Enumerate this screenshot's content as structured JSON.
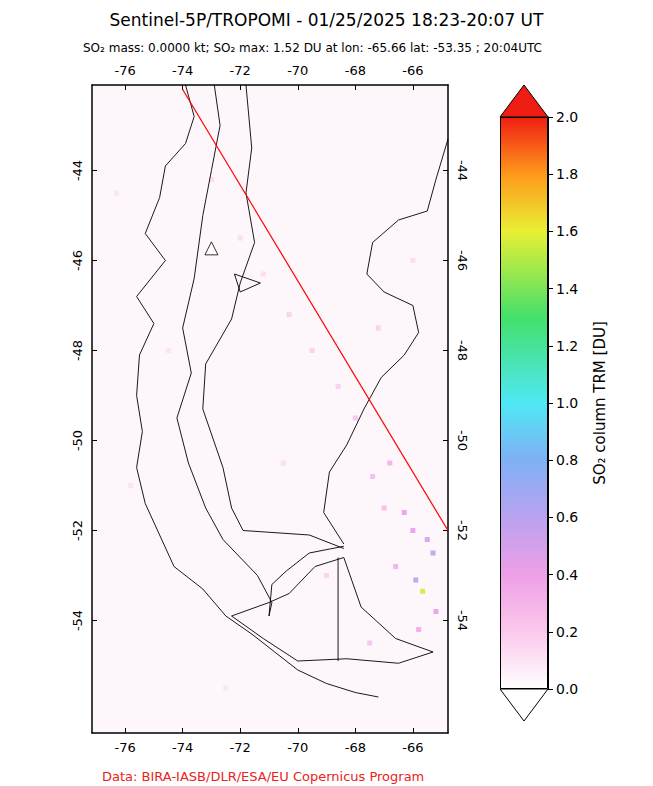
{
  "chart_data": {
    "type": "map",
    "title": "Sentinel-5P/TROPOMI - 01/25/2025 18:23-20:07 UT",
    "subtitle": "SO₂ mass: 0.0000 kt; SO₂ max: 1.52 DU at lon: -65.66 lat: -53.35 ; 20:04UTC",
    "credit": "Data: BIRA-IASB/DLR/ESA/EU Copernicus Program",
    "xlim": [
      -77.15,
      -64.78
    ],
    "ylim": [
      -56.5,
      -42.1
    ],
    "xticks": [
      -76,
      -74,
      -72,
      -70,
      -68,
      -66
    ],
    "yticks": [
      -44,
      -46,
      -48,
      -50,
      -52,
      -54
    ],
    "grid": false,
    "colorbar": {
      "label": "SO₂ column TRM [DU]",
      "range": [
        0,
        2
      ],
      "ticks": [
        {
          "value": 0,
          "label": "0.0"
        },
        {
          "value": 0.2,
          "label": "0.2"
        },
        {
          "value": 0.4,
          "label": "0.4"
        },
        {
          "value": 0.6,
          "label": "0.6"
        },
        {
          "value": 0.8,
          "label": "0.8"
        },
        {
          "value": 1,
          "label": "1.0"
        },
        {
          "value": 1.2,
          "label": "1.2"
        },
        {
          "value": 1.4,
          "label": "1.4"
        },
        {
          "value": 1.6,
          "label": "1.6"
        },
        {
          "value": 1.8,
          "label": "1.8"
        },
        {
          "value": 2,
          "label": "2.0"
        }
      ]
    },
    "pixels": [
      [
        -65.66,
        -53.35,
        1.52
      ],
      [
        -65.9,
        -53.1,
        0.7
      ],
      [
        -65.3,
        -52.5,
        0.65
      ],
      [
        -65.5,
        -52.2,
        0.55
      ],
      [
        -66.0,
        -52.0,
        0.5
      ],
      [
        -66.3,
        -51.6,
        0.45
      ],
      [
        -65.2,
        -53.8,
        0.5
      ],
      [
        -65.8,
        -54.2,
        0.4
      ],
      [
        -66.6,
        -52.8,
        0.35
      ],
      [
        -67.0,
        -51.5,
        0.3
      ],
      [
        -67.4,
        -50.8,
        0.3
      ],
      [
        -66.8,
        -50.5,
        0.35
      ],
      [
        -68.0,
        -49.5,
        0.25
      ],
      [
        -68.6,
        -48.8,
        0.2
      ],
      [
        -69.5,
        -48.0,
        0.2
      ],
      [
        -70.3,
        -47.2,
        0.2
      ],
      [
        -71.2,
        -46.3,
        0.15
      ],
      [
        -72.0,
        -45.5,
        0.15
      ],
      [
        -73.0,
        -44.2,
        0.15
      ],
      [
        -70.5,
        -50.5,
        0.15
      ],
      [
        -69.0,
        -53.0,
        0.2
      ],
      [
        -67.5,
        -54.5,
        0.25
      ],
      [
        -74.5,
        -48.0,
        0.12
      ],
      [
        -75.8,
        -51.0,
        0.12
      ],
      [
        -72.5,
        -55.5,
        0.12
      ],
      [
        -76.3,
        -44.5,
        0.12
      ],
      [
        -66.0,
        -46.0,
        0.15
      ],
      [
        -67.2,
        -47.5,
        0.2
      ]
    ],
    "orbit_edge": [
      [
        -74.0,
        -42.2
      ],
      [
        -64.78,
        -52.0
      ]
    ],
    "volcano": [
      -73.0,
      -45.73
    ],
    "coastlines": [
      [
        [
          -73.9,
          -42.1
        ],
        [
          -73.6,
          -42.8
        ],
        [
          -73.9,
          -43.4
        ],
        [
          -74.6,
          -43.9
        ],
        [
          -74.8,
          -44.6
        ],
        [
          -75.3,
          -45.4
        ],
        [
          -74.6,
          -46.0
        ],
        [
          -75.6,
          -46.8
        ],
        [
          -75.0,
          -47.4
        ],
        [
          -75.5,
          -48.1
        ],
        [
          -75.6,
          -49.0
        ],
        [
          -75.4,
          -49.8
        ],
        [
          -75.6,
          -50.6
        ],
        [
          -75.3,
          -51.4
        ],
        [
          -74.8,
          -52.1
        ],
        [
          -74.3,
          -52.8
        ],
        [
          -73.3,
          -53.3
        ],
        [
          -72.5,
          -53.9
        ],
        [
          -71.6,
          -54.3
        ],
        [
          -70.8,
          -54.7
        ],
        [
          -70.0,
          -55.1
        ],
        [
          -69.0,
          -55.4
        ],
        [
          -68.0,
          -55.6
        ],
        [
          -67.2,
          -55.7
        ]
      ],
      [
        [
          -72.9,
          -42.1
        ],
        [
          -72.7,
          -43.0
        ],
        [
          -73.0,
          -44.0
        ],
        [
          -73.3,
          -45.0
        ],
        [
          -73.6,
          -46.4
        ],
        [
          -74.0,
          -47.5
        ],
        [
          -73.7,
          -48.5
        ],
        [
          -74.2,
          -49.5
        ],
        [
          -73.8,
          -50.5
        ],
        [
          -73.2,
          -51.5
        ],
        [
          -72.6,
          -52.2
        ],
        [
          -71.4,
          -53.0
        ],
        [
          -70.9,
          -53.6
        ],
        [
          -71.0,
          -53.9
        ]
      ],
      [
        [
          -71.0,
          -53.9
        ],
        [
          -70.9,
          -53.2
        ],
        [
          -70.4,
          -52.9
        ],
        [
          -69.6,
          -52.5
        ],
        [
          -68.4,
          -52.35
        ]
      ],
      [
        [
          -64.78,
          -43.3
        ],
        [
          -65.2,
          -44.2
        ],
        [
          -65.5,
          -44.9
        ],
        [
          -66.5,
          -45.1
        ],
        [
          -67.4,
          -45.6
        ],
        [
          -67.6,
          -46.3
        ],
        [
          -67.0,
          -46.7
        ],
        [
          -66.0,
          -47.0
        ],
        [
          -65.8,
          -47.6
        ],
        [
          -66.3,
          -48.1
        ],
        [
          -67.1,
          -48.6
        ],
        [
          -67.7,
          -49.3
        ],
        [
          -68.3,
          -50.1
        ],
        [
          -68.9,
          -50.7
        ],
        [
          -69.1,
          -51.6
        ],
        [
          -68.4,
          -52.3
        ]
      ],
      [
        [
          -68.4,
          -52.6
        ],
        [
          -67.8,
          -53.7
        ],
        [
          -66.6,
          -54.4
        ],
        [
          -65.3,
          -54.7
        ],
        [
          -66.5,
          -54.95
        ],
        [
          -68.3,
          -54.85
        ],
        [
          -70.0,
          -54.9
        ],
        [
          -71.2,
          -54.4
        ],
        [
          -72.3,
          -53.9
        ],
        [
          -71.0,
          -53.6
        ],
        [
          -70.3,
          -53.4
        ],
        [
          -69.4,
          -52.8
        ],
        [
          -68.4,
          -52.6
        ]
      ],
      [
        [
          -72.2,
          -46.3
        ],
        [
          -71.3,
          -46.5
        ],
        [
          -72.0,
          -46.7
        ],
        [
          -72.2,
          -46.3
        ]
      ]
    ],
    "borders": [
      [
        [
          -71.8,
          -42.1
        ],
        [
          -71.6,
          -43.5
        ],
        [
          -71.8,
          -44.5
        ],
        [
          -71.5,
          -45.6
        ],
        [
          -72.0,
          -46.5
        ],
        [
          -72.3,
          -47.3
        ],
        [
          -73.2,
          -48.3
        ],
        [
          -73.3,
          -49.3
        ],
        [
          -72.6,
          -50.6
        ],
        [
          -72.3,
          -51.5
        ],
        [
          -71.9,
          -52.0
        ],
        [
          -69.6,
          -52.1
        ],
        [
          -68.4,
          -52.4
        ]
      ],
      [
        [
          -68.6,
          -52.6
        ],
        [
          -68.6,
          -54.9
        ]
      ]
    ]
  }
}
